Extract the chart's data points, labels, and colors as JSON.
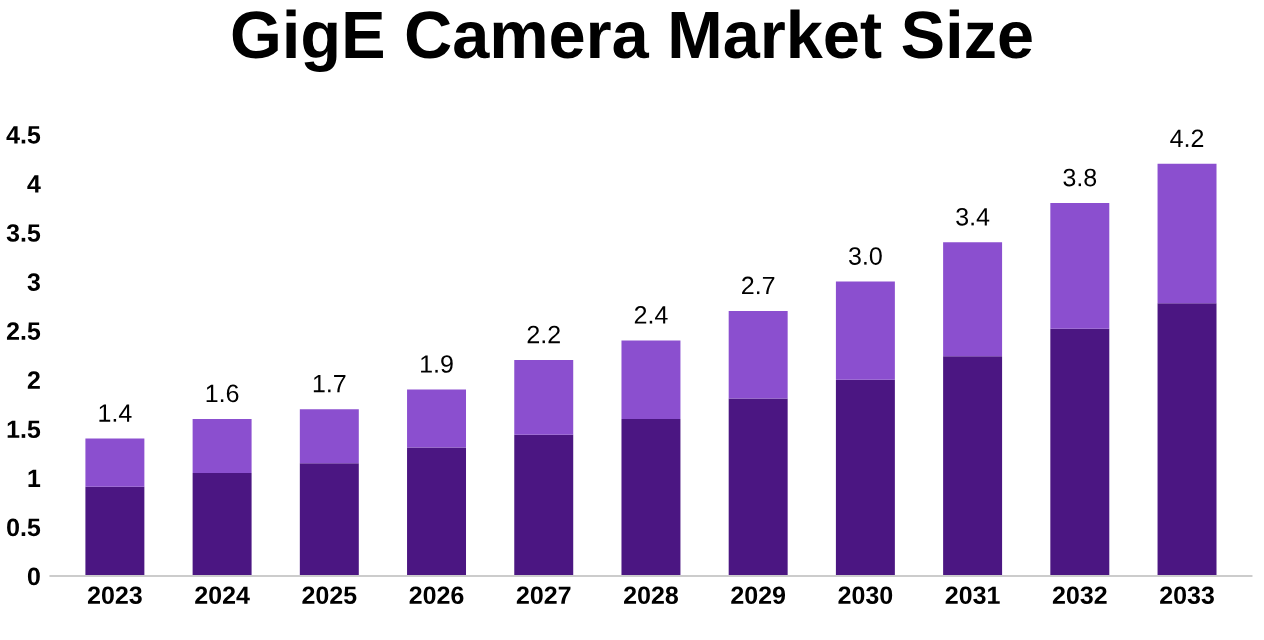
{
  "chart_data": {
    "type": "bar",
    "title": "GigE Camera Market Size",
    "stacked": true,
    "categories": [
      "2023",
      "2024",
      "2025",
      "2026",
      "2027",
      "2028",
      "2029",
      "2030",
      "2031",
      "2032",
      "2033"
    ],
    "series": [
      {
        "color": "#4b1682",
        "values": [
          0.91,
          1.05,
          1.15,
          1.31,
          1.44,
          1.6,
          1.81,
          2.0,
          2.24,
          2.52,
          2.78
        ]
      },
      {
        "color": "#8b4fcf",
        "values": [
          0.49,
          0.55,
          0.55,
          0.59,
          0.76,
          0.8,
          0.89,
          1.0,
          1.16,
          1.28,
          1.42
        ]
      }
    ],
    "totals": [
      "1.4",
      "1.6",
      "1.7",
      "1.9",
      "2.2",
      "2.4",
      "2.7",
      "3.0",
      "3.4",
      "3.8",
      "4.2"
    ],
    "ylim": [
      0,
      4.5
    ],
    "yticks": [
      0,
      0.5,
      1,
      1.5,
      2,
      2.5,
      3,
      3.5,
      4,
      4.5
    ],
    "grid": false,
    "legend": false
  }
}
